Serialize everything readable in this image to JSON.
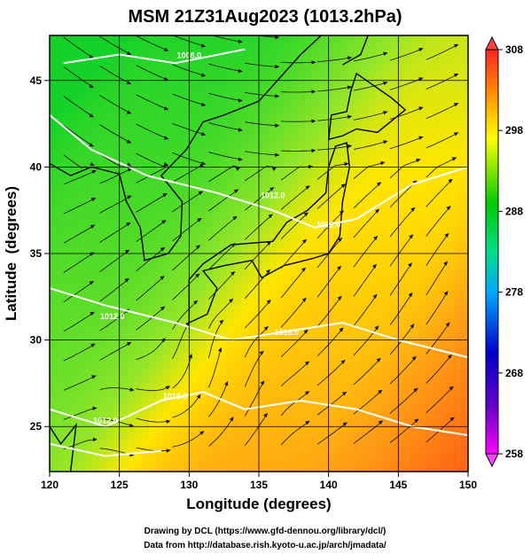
{
  "chart_data": {
    "type": "heatmap",
    "title": "MSM 21Z31Aug2023 (1013.2hPa)",
    "xlabel": "Longitude (degrees)",
    "ylabel": "Latitude  (degrees)",
    "xlim": [
      120,
      150
    ],
    "ylim": [
      22.4,
      47.6
    ],
    "x_ticks": [
      "120",
      "125",
      "130",
      "135",
      "140",
      "145",
      "150"
    ],
    "y_ticks": [
      "25",
      "30",
      "35",
      "40",
      "45"
    ],
    "colorbar": {
      "min": 258,
      "max": 308,
      "ticks": [
        "308",
        "298",
        "288",
        "278",
        "268",
        "258"
      ],
      "colors": [
        "#ff00ff",
        "#0000cc",
        "#00aaff",
        "#00dd88",
        "#00cc00",
        "#ffff00",
        "#ff8800",
        "#ff2222"
      ]
    },
    "contour_labels": [
      "1008.0",
      "1012.0",
      "1012.0",
      "1012.0",
      "1016.0",
      "1012.0",
      "1016.0"
    ],
    "grid": true,
    "streamlines": true
  },
  "footer": {
    "line1": "Drawing by DCL (https://www.gfd-dennou.org/library/dcl/)",
    "line2": "Data from http://database.rish.kyoto-u.ac.jp/arch/jmadata/"
  }
}
